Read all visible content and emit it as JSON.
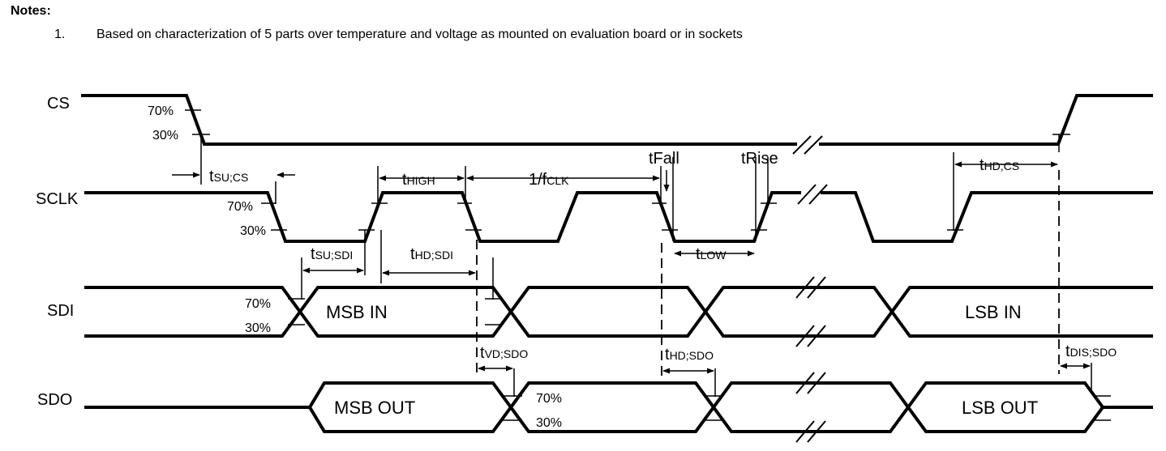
{
  "notes": {
    "title": "Notes:",
    "items": [
      {
        "number": "1.",
        "text": "Based on characterization of 5 parts over temperature and voltage as mounted on evaluation board or in sockets"
      }
    ]
  },
  "signals": {
    "cs": "CS",
    "sclk": "SCLK",
    "sdi": "SDI",
    "sdo": "SDO"
  },
  "thresholds": {
    "high": "70%",
    "low": "30%"
  },
  "timing": {
    "t_su_cs": {
      "main": "t",
      "sub": "SU;CS"
    },
    "t_high": {
      "main": "t",
      "sub": "HIGH"
    },
    "period": {
      "main": "1/f",
      "sub": "CLK"
    },
    "t_fall": "tFall",
    "t_rise": "tRise",
    "t_hd_cs": {
      "main": "t",
      "sub": "HD;CS"
    },
    "t_su_sdi": {
      "main": "t",
      "sub": "SU;SDI"
    },
    "t_hd_sdi": {
      "main": "t",
      "sub": "HD;SDI"
    },
    "t_low": {
      "main": "t",
      "sub": "LOW"
    },
    "t_vd_sdo": {
      "main": "t",
      "sub": "VD;SDO"
    },
    "t_hd_sdo": {
      "main": "t",
      "sub": "HD;SDO"
    },
    "t_dis_sdo": {
      "main": "t",
      "sub": "DIS;SDO"
    }
  },
  "data_labels": {
    "msb_in": "MSB IN",
    "lsb_in": "LSB IN",
    "msb_out": "MSB OUT",
    "lsb_out": "LSB OUT"
  }
}
